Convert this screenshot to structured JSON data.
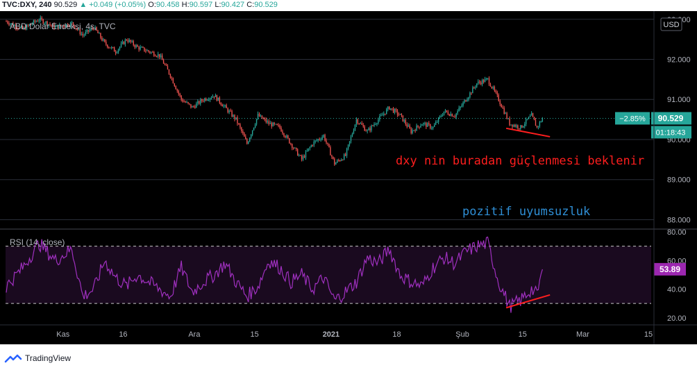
{
  "header": {
    "symbol": "TVC:DXY, 240",
    "last": "90.529",
    "change_arrow": "▲",
    "change": "+0.049 (+0.05%)",
    "o_label": "O:",
    "o": "90.458",
    "h_label": "H:",
    "h": "90.597",
    "l_label": "L:",
    "l": "90.427",
    "c_label": "C:",
    "c": "90.529"
  },
  "chart_data": [
    {
      "type": "candlestick",
      "title": "ABD Dolar Endeksi, 4s, TVC",
      "currency_badge": "USD",
      "y_ticks": [
        "93.000",
        "92.000",
        "91.000",
        "90.000",
        "89.000",
        "88.000"
      ],
      "y_tick_values": [
        93,
        92,
        91,
        90,
        89,
        88
      ],
      "ylim": [
        87.8,
        93.1
      ],
      "price_badge": {
        "change": "−2.85%",
        "price": "90.529",
        "countdown": "01:18:43",
        "value": 90.529
      },
      "close_path": [
        {
          "i": 0,
          "v": 92.95
        },
        {
          "i": 3,
          "v": 92.75
        },
        {
          "i": 6,
          "v": 93.0
        },
        {
          "i": 9,
          "v": 92.8
        },
        {
          "i": 12,
          "v": 92.9
        },
        {
          "i": 14,
          "v": 92.6
        },
        {
          "i": 16,
          "v": 92.8
        },
        {
          "i": 18,
          "v": 92.4
        },
        {
          "i": 20,
          "v": 92.2
        },
        {
          "i": 22,
          "v": 92.5
        },
        {
          "i": 24,
          "v": 92.3
        },
        {
          "i": 26,
          "v": 92.2
        },
        {
          "i": 28,
          "v": 92.1
        },
        {
          "i": 30,
          "v": 91.6
        },
        {
          "i": 32,
          "v": 91.0
        },
        {
          "i": 34,
          "v": 90.8
        },
        {
          "i": 36,
          "v": 91.0
        },
        {
          "i": 38,
          "v": 91.1
        },
        {
          "i": 40,
          "v": 90.8
        },
        {
          "i": 42,
          "v": 90.5
        },
        {
          "i": 44,
          "v": 89.9
        },
        {
          "i": 46,
          "v": 90.6
        },
        {
          "i": 48,
          "v": 90.4
        },
        {
          "i": 50,
          "v": 90.3
        },
        {
          "i": 52,
          "v": 89.9
        },
        {
          "i": 54,
          "v": 89.5
        },
        {
          "i": 56,
          "v": 89.9
        },
        {
          "i": 58,
          "v": 90.1
        },
        {
          "i": 60,
          "v": 89.4
        },
        {
          "i": 62,
          "v": 89.6
        },
        {
          "i": 64,
          "v": 90.5
        },
        {
          "i": 66,
          "v": 90.2
        },
        {
          "i": 68,
          "v": 90.5
        },
        {
          "i": 70,
          "v": 90.8
        },
        {
          "i": 72,
          "v": 90.6
        },
        {
          "i": 74,
          "v": 90.2
        },
        {
          "i": 76,
          "v": 90.4
        },
        {
          "i": 78,
          "v": 90.3
        },
        {
          "i": 80,
          "v": 90.7
        },
        {
          "i": 82,
          "v": 90.6
        },
        {
          "i": 84,
          "v": 91.0
        },
        {
          "i": 86,
          "v": 91.4
        },
        {
          "i": 88,
          "v": 91.5
        },
        {
          "i": 90,
          "v": 91.0
        },
        {
          "i": 92,
          "v": 90.4
        },
        {
          "i": 94,
          "v": 90.3
        },
        {
          "i": 96,
          "v": 90.6
        },
        {
          "i": 97,
          "v": 90.3
        },
        {
          "i": 98,
          "v": 90.529
        }
      ],
      "annotations": [
        {
          "text": "dxy nin buradan güçlenmesi beklenir",
          "color": "#ff1e1e"
        },
        {
          "text": "pozitif uyumsuzluk",
          "color": "#2f8fd6"
        }
      ],
      "trendline": {
        "from": {
          "i": 91,
          "v": 90.28
        },
        "to": {
          "i": 99,
          "v": 90.07
        },
        "color": "#ff1e1e"
      }
    },
    {
      "type": "line",
      "title": "RSI (14, close)",
      "y_ticks": [
        "80.00",
        "60.00",
        "40.00",
        "20.00"
      ],
      "y_tick_values": [
        80,
        60,
        40,
        20
      ],
      "ylim": [
        17,
        80
      ],
      "bands": [
        70,
        30
      ],
      "value_badge": "53.89",
      "value": 53.89,
      "color": "#a030c0",
      "path": [
        {
          "i": 0,
          "v": 42
        },
        {
          "i": 3,
          "v": 55
        },
        {
          "i": 6,
          "v": 72
        },
        {
          "i": 9,
          "v": 60
        },
        {
          "i": 12,
          "v": 68
        },
        {
          "i": 14,
          "v": 35
        },
        {
          "i": 16,
          "v": 40
        },
        {
          "i": 18,
          "v": 60
        },
        {
          "i": 20,
          "v": 48
        },
        {
          "i": 22,
          "v": 42
        },
        {
          "i": 24,
          "v": 50
        },
        {
          "i": 26,
          "v": 45
        },
        {
          "i": 28,
          "v": 40
        },
        {
          "i": 30,
          "v": 35
        },
        {
          "i": 32,
          "v": 55
        },
        {
          "i": 34,
          "v": 38
        },
        {
          "i": 36,
          "v": 45
        },
        {
          "i": 38,
          "v": 50
        },
        {
          "i": 40,
          "v": 58
        },
        {
          "i": 42,
          "v": 45
        },
        {
          "i": 44,
          "v": 35
        },
        {
          "i": 46,
          "v": 42
        },
        {
          "i": 48,
          "v": 60
        },
        {
          "i": 50,
          "v": 55
        },
        {
          "i": 52,
          "v": 45
        },
        {
          "i": 54,
          "v": 50
        },
        {
          "i": 56,
          "v": 40
        },
        {
          "i": 58,
          "v": 48
        },
        {
          "i": 60,
          "v": 32
        },
        {
          "i": 62,
          "v": 38
        },
        {
          "i": 64,
          "v": 45
        },
        {
          "i": 66,
          "v": 62
        },
        {
          "i": 68,
          "v": 58
        },
        {
          "i": 70,
          "v": 68
        },
        {
          "i": 72,
          "v": 50
        },
        {
          "i": 74,
          "v": 45
        },
        {
          "i": 76,
          "v": 42
        },
        {
          "i": 78,
          "v": 55
        },
        {
          "i": 80,
          "v": 62
        },
        {
          "i": 82,
          "v": 58
        },
        {
          "i": 84,
          "v": 66
        },
        {
          "i": 86,
          "v": 70
        },
        {
          "i": 88,
          "v": 72
        },
        {
          "i": 90,
          "v": 45
        },
        {
          "i": 92,
          "v": 28
        },
        {
          "i": 94,
          "v": 32
        },
        {
          "i": 96,
          "v": 40
        },
        {
          "i": 97,
          "v": 36
        },
        {
          "i": 98,
          "v": 53.89
        }
      ],
      "trendline": {
        "from": {
          "i": 91,
          "v": 27
        },
        "to": {
          "i": 99,
          "v": 36
        },
        "color": "#ff1e1e"
      }
    }
  ],
  "x_axis": {
    "ticks": [
      {
        "label": "Kas",
        "i": 10,
        "bold": false
      },
      {
        "label": "16",
        "i": 21,
        "bold": false
      },
      {
        "label": "Ara",
        "i": 34,
        "bold": false
      },
      {
        "label": "15",
        "i": 45,
        "bold": false
      },
      {
        "label": "2021",
        "i": 59,
        "bold": true
      },
      {
        "label": "18",
        "i": 71,
        "bold": false
      },
      {
        "label": "Şub",
        "i": 83,
        "bold": false
      },
      {
        "label": "15",
        "i": 94,
        "bold": false
      },
      {
        "label": "Mar",
        "i": 105,
        "bold": false
      },
      {
        "label": "15",
        "i": 117,
        "bold": false
      }
    ],
    "total_slots": 118
  },
  "colors": {
    "background": "#000000",
    "up": "#26a69a",
    "down": "#ef5350",
    "grid": "#2a2e39",
    "price_badge": "#26a69a",
    "rsi_badge": "#9c27b0",
    "rsi_band_fill": "#1a0a1f",
    "axis_text": "#b2b5be"
  },
  "footer": {
    "brand": "TradingView",
    "logo_icon": "tradingview-cloud-icon"
  }
}
